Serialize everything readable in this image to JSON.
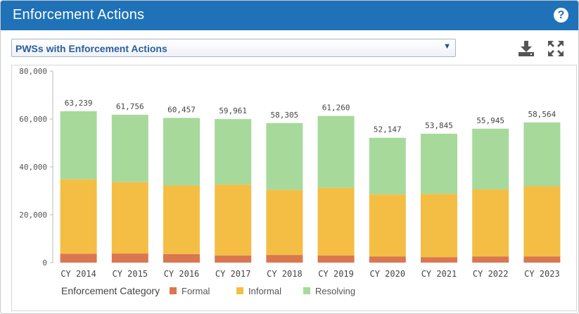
{
  "header": {
    "title": "Enforcement Actions",
    "help_icon": "question-circle-icon"
  },
  "selector": {
    "value": "PWSs with Enforcement Actions"
  },
  "toolbar": {
    "download_icon": "download-icon",
    "expand_icon": "expand-icon"
  },
  "chart_data": {
    "type": "bar",
    "stacked": true,
    "categories": [
      "CY 2014",
      "CY 2015",
      "CY 2016",
      "CY 2017",
      "CY 2018",
      "CY 2019",
      "CY 2020",
      "CY 2021",
      "CY 2022",
      "CY 2023"
    ],
    "series": [
      {
        "name": "Formal",
        "color": "#d9774f",
        "values": [
          3700,
          3800,
          3600,
          3000,
          3200,
          3000,
          2600,
          2300,
          2600,
          2600
        ]
      },
      {
        "name": "Informal",
        "color": "#f4be45",
        "values": [
          31100,
          29800,
          28600,
          29600,
          27200,
          28200,
          25900,
          26400,
          28000,
          29300
        ]
      },
      {
        "name": "Resolving",
        "color": "#a7d99b",
        "values": [
          28439,
          28156,
          28257,
          27361,
          27905,
          30060,
          23647,
          25145,
          25345,
          26664
        ]
      }
    ],
    "totals": [
      "63,239",
      "61,756",
      "60,457",
      "59,961",
      "58,305",
      "61,260",
      "52,147",
      "53,845",
      "55,945",
      "58,564"
    ],
    "y_ticks": [
      "0",
      "20,000",
      "40,000",
      "60,000",
      "80,000"
    ],
    "ylim": [
      0,
      80000
    ],
    "legend": {
      "title": "Enforcement Category",
      "position": "bottom-left"
    },
    "grid": false
  }
}
